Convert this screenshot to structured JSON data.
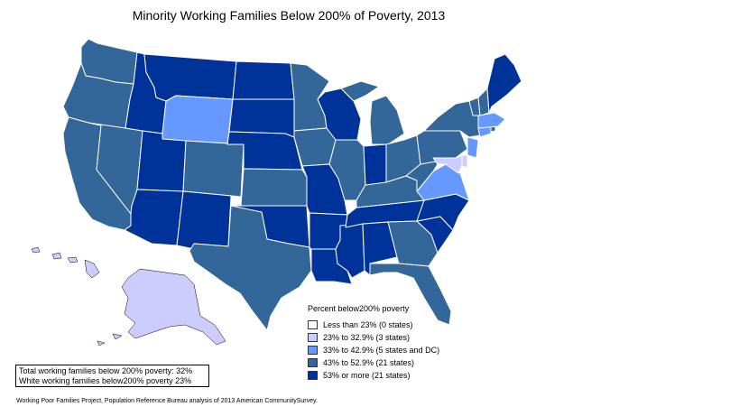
{
  "title": "Minority Working Families Below 200% of Poverty, 2013",
  "colors": {
    "bin1": "#ffffff",
    "bin2": "#ccccff",
    "bin3": "#6699ff",
    "bin4": "#336699",
    "bin5": "#003399",
    "border": "#ffffff"
  },
  "legend": {
    "title": "Percent below200% poverty",
    "items": [
      {
        "label": "Less than 23% (0 states)",
        "color": "#ffffff"
      },
      {
        "label": "23% to 32.9% (3 states)",
        "color": "#ccccff"
      },
      {
        "label": "33% to 42.9% (5 states and DC)",
        "color": "#6699ff"
      },
      {
        "label": "43% to 52.9% (21 states)",
        "color": "#336699"
      },
      {
        "label": "53% or more (21 states)",
        "color": "#003399"
      }
    ]
  },
  "stats": {
    "total": "Total working families below 200% poverty: 32%",
    "white": "White working families below200% poverty 23%"
  },
  "source": "Working Poor Families Project, Population Reference Bureau analysis of 2013 American CommunitySurvey."
}
